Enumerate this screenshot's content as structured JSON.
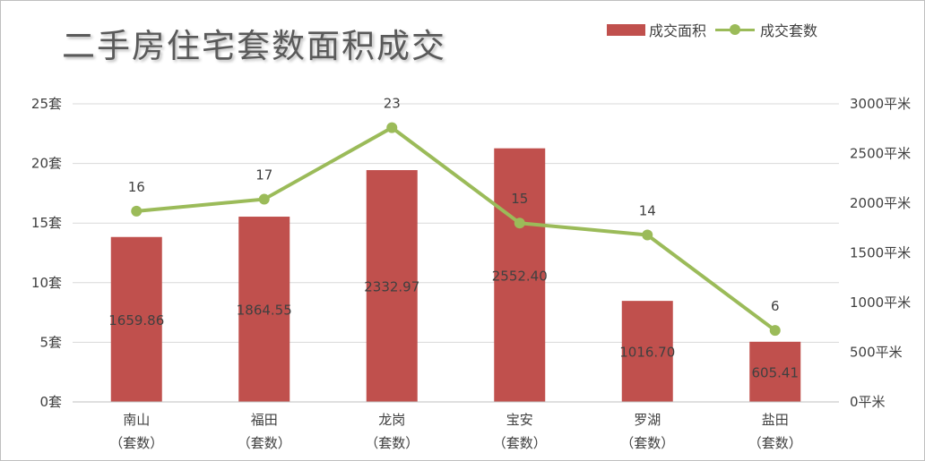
{
  "title": "二手房住宅套数面积成交",
  "colors": {
    "bar": "#c0504d",
    "line": "#9bbb59",
    "text": "#404040",
    "grid": "#d9d9d9"
  },
  "legend": {
    "bar_label": "成交面积",
    "line_label": "成交套数"
  },
  "chart_data": {
    "type": "bar",
    "categories": [
      [
        "南山",
        "（套数）"
      ],
      [
        "福田",
        "（套数）"
      ],
      [
        "龙岗",
        "（套数）"
      ],
      [
        "宝安",
        "（套数）"
      ],
      [
        "罗湖",
        "（套数）"
      ],
      [
        "盐田",
        "（套数）"
      ]
    ],
    "series": [
      {
        "name": "成交面积",
        "type": "bar",
        "axis": "right",
        "values": [
          1659.86,
          1864.55,
          2332.97,
          2552.4,
          1016.7,
          605.41
        ],
        "labels": [
          "1659.86",
          "1864.55",
          "2332.97",
          "2552.40",
          "1016.70",
          "605.41"
        ]
      },
      {
        "name": "成交套数",
        "type": "line",
        "axis": "left",
        "values": [
          16,
          17,
          23,
          15,
          14,
          6
        ],
        "labels": [
          "16",
          "17",
          "23",
          "15",
          "14",
          "6"
        ]
      }
    ],
    "y_left": {
      "min": 0,
      "max": 25,
      "ticks": [
        0,
        5,
        10,
        15,
        20,
        25
      ],
      "unit": "套"
    },
    "y_right": {
      "min": 0,
      "max": 3000,
      "ticks": [
        0,
        500,
        1000,
        1500,
        2000,
        2500,
        3000
      ],
      "unit": "平米"
    },
    "grid": true,
    "legend_position": "top-right"
  }
}
